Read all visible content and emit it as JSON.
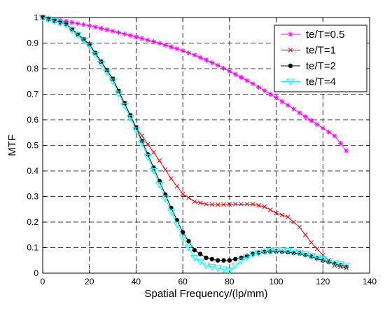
{
  "chart_data": {
    "type": "line",
    "title": "",
    "xlabel": "Spatial Frequency/(lp/mm)",
    "ylabel": "MTF",
    "xlim": [
      0,
      140
    ],
    "ylim": [
      0,
      1
    ],
    "xticks": [
      0,
      20,
      40,
      60,
      80,
      100,
      120,
      140
    ],
    "yticks": [
      0,
      0.1,
      0.2,
      0.3,
      0.4,
      0.5,
      0.6,
      0.7,
      0.8,
      0.9,
      1
    ],
    "xtick_labels": [
      "0",
      "20",
      "40",
      "60",
      "80",
      "100",
      "120",
      "140"
    ],
    "ytick_labels": [
      "0",
      "0.1",
      "0.2",
      "0.3",
      "0.4",
      "0.5",
      "0.6",
      "0.7",
      "0.8",
      "0.9",
      "1"
    ],
    "grid": true,
    "legend_position": "top-right",
    "x": [
      0,
      10,
      20,
      30,
      40,
      45,
      50,
      55,
      60,
      65,
      70,
      75,
      80,
      85,
      90,
      95,
      100,
      105,
      110,
      115,
      120,
      125,
      130
    ],
    "series": [
      {
        "name": "te/T=0.5",
        "marker": "star",
        "color": "#ff00ff",
        "values": [
          1.0,
          0.985,
          0.968,
          0.947,
          0.924,
          0.912,
          0.899,
          0.885,
          0.87,
          0.853,
          0.834,
          0.813,
          0.79,
          0.766,
          0.741,
          0.714,
          0.686,
          0.657,
          0.627,
          0.597,
          0.567,
          0.537,
          0.479
        ]
      },
      {
        "name": "te/T=1",
        "marker": "x",
        "color": "#ff0000",
        "values": [
          1.0,
          0.975,
          0.895,
          0.76,
          0.57,
          0.505,
          0.44,
          0.37,
          0.31,
          0.28,
          0.27,
          0.268,
          0.27,
          0.27,
          0.27,
          0.26,
          0.235,
          0.22,
          0.18,
          0.12,
          0.07,
          0.03,
          0.02
        ]
      },
      {
        "name": "te/T=2",
        "marker": "dot",
        "color": "#000000",
        "values": [
          1.0,
          0.975,
          0.895,
          0.76,
          0.57,
          0.465,
          0.36,
          0.255,
          0.16,
          0.09,
          0.06,
          0.05,
          0.05,
          0.06,
          0.075,
          0.083,
          0.085,
          0.082,
          0.077,
          0.065,
          0.05,
          0.037,
          0.025
        ]
      },
      {
        "name": "te/T=4",
        "marker": "triangle",
        "color": "#00ffff",
        "values": [
          1.0,
          0.972,
          0.89,
          0.75,
          0.56,
          0.455,
          0.345,
          0.24,
          0.14,
          0.06,
          0.03,
          0.02,
          0.01,
          0.05,
          0.075,
          0.085,
          0.09,
          0.088,
          0.08,
          0.068,
          0.055,
          0.04,
          0.03
        ]
      }
    ]
  }
}
